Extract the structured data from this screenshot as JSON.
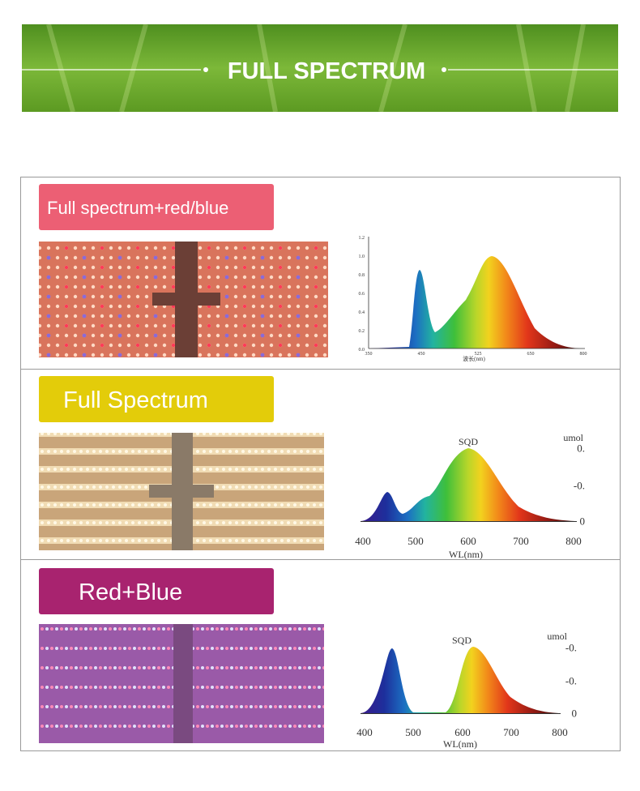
{
  "header": {
    "title": "FULL SPECTRUM"
  },
  "panels": [
    {
      "label": "Full spectrum+red/blue",
      "chart": {
        "y_labels": [
          "1.2",
          "1.0",
          "0.8",
          "0.6",
          "0.4",
          "0.2",
          "0.0"
        ],
        "x_labels": [
          "350",
          "450",
          "525",
          "650",
          "800"
        ],
        "x_title": "波长(nm)"
      }
    },
    {
      "label": "Full Spectrum",
      "chart": {
        "title": "SQD",
        "unit": "umol",
        "y_labels": [
          "0.",
          "-0.",
          "0"
        ],
        "x_labels": [
          "400",
          "500",
          "600",
          "700",
          "800"
        ],
        "x_title": "WL(nm)"
      }
    },
    {
      "label": "Red+Blue",
      "chart": {
        "title": "SQD",
        "unit": "umol",
        "y_labels": [
          "-0.",
          "-0.",
          "0"
        ],
        "x_labels": [
          "400",
          "500",
          "600",
          "700",
          "800"
        ],
        "x_title": "WL(nm)"
      }
    }
  ]
}
